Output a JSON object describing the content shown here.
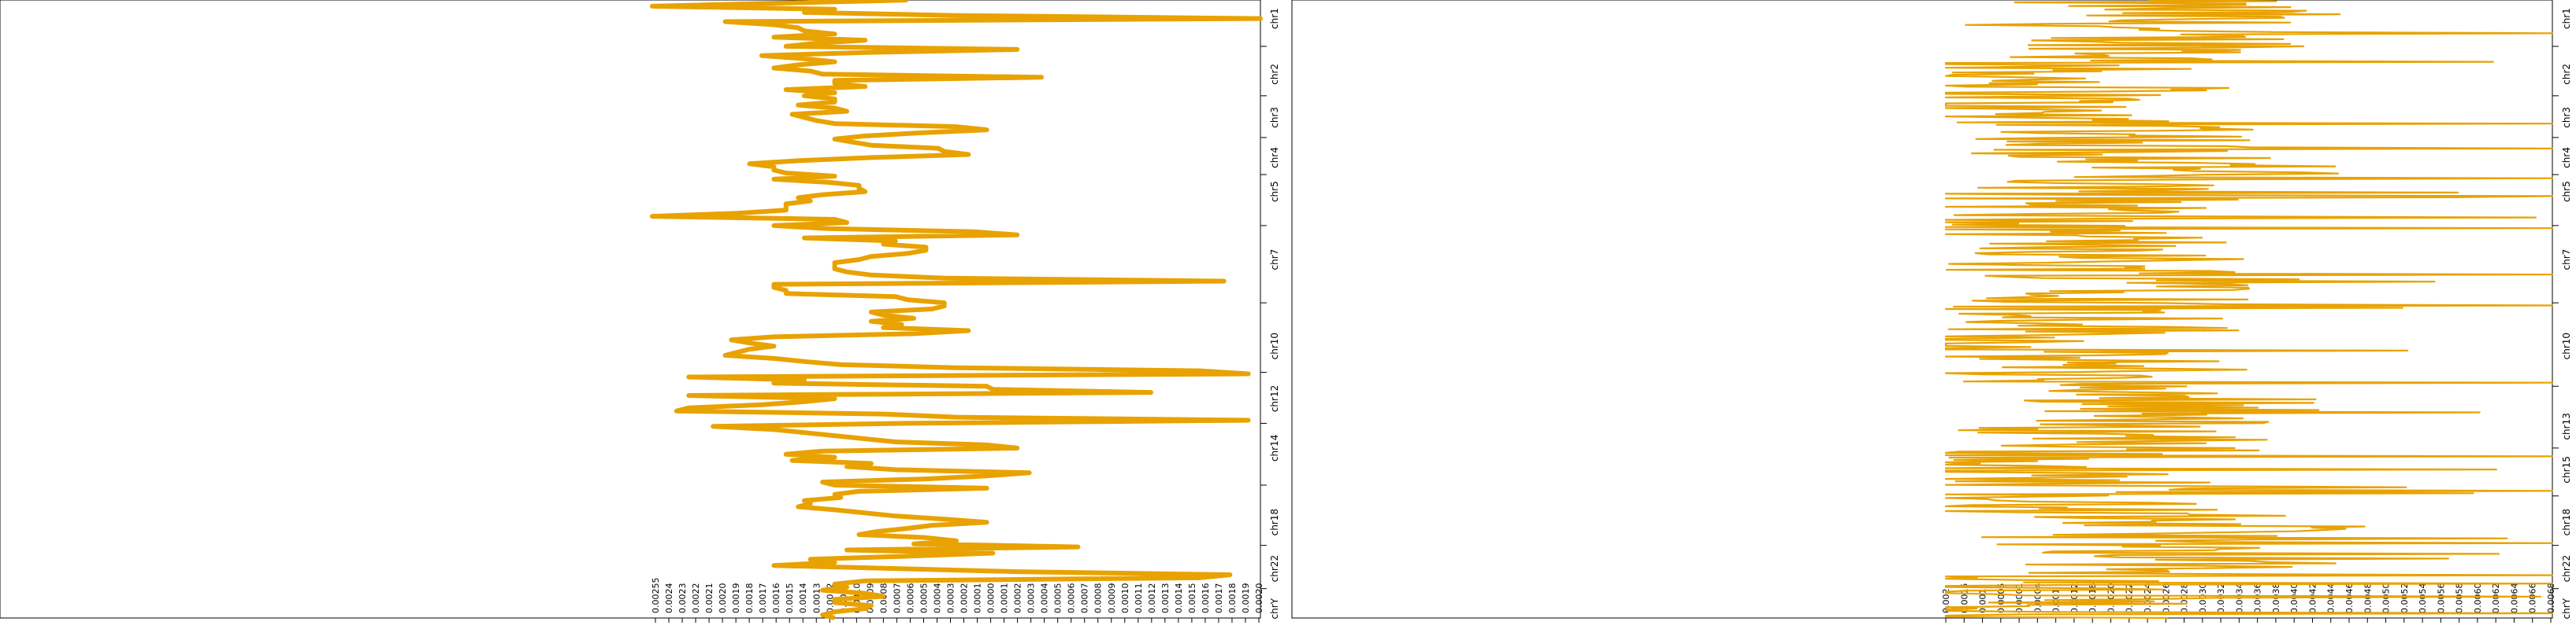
{
  "chart_data": [
    {
      "type": "line",
      "orientation": "vertical-profile",
      "color": "#E8A202",
      "chromosomes": [
        "chr1",
        "chr2",
        "chr3",
        "chr4",
        "chr5",
        "chr7",
        "chr10",
        "chr12",
        "chr14",
        "chr18",
        "chr22",
        "chrY"
      ],
      "chromosome_positions": [
        0.03,
        0.12,
        0.19,
        0.255,
        0.31,
        0.42,
        0.56,
        0.645,
        0.725,
        0.845,
        0.92,
        0.985
      ],
      "x_ticks": [
        "0.00255",
        "0.0024",
        "0.0023",
        "0.0022",
        "0.0021",
        "0.0020",
        "0.0019",
        "0.0018",
        "0.0017",
        "0.0016",
        "0.0015",
        "0.0014",
        "0.0013",
        "0.0012",
        "0.0011",
        "0.0010",
        "0.0009",
        "0.0008",
        "0.0007",
        "0.0006",
        "0.0005",
        "0.0004",
        "0.0003",
        "0.0002",
        "0.0001",
        "0.0000",
        "0.0001",
        "0.0002",
        "0.0003",
        "0.0004",
        "0.0005",
        "0.0006",
        "0.0007",
        "0.0008",
        "0.0009",
        "0.0010",
        "0.0011",
        "0.0012",
        "0.0013",
        "0.0014",
        "0.0015",
        "0.0016",
        "0.0017",
        "0.0018",
        "0.0019",
        "0.0020"
      ],
      "genome_fraction": [
        0.0,
        0.01,
        0.015,
        0.02,
        0.025,
        0.03,
        0.035,
        0.04,
        0.045,
        0.05,
        0.055,
        0.06,
        0.065,
        0.07,
        0.075,
        0.08,
        0.085,
        0.09,
        0.095,
        0.1,
        0.105,
        0.11,
        0.115,
        0.12,
        0.125,
        0.13,
        0.135,
        0.14,
        0.145,
        0.15,
        0.155,
        0.16,
        0.165,
        0.17,
        0.175,
        0.18,
        0.185,
        0.19,
        0.195,
        0.2,
        0.205,
        0.21,
        0.215,
        0.22,
        0.225,
        0.23,
        0.235,
        0.24,
        0.245,
        0.25,
        0.255,
        0.26,
        0.265,
        0.27,
        0.275,
        0.28,
        0.285,
        0.29,
        0.295,
        0.3,
        0.305,
        0.31,
        0.315,
        0.32,
        0.325,
        0.33,
        0.335,
        0.34,
        0.345,
        0.35,
        0.355,
        0.36,
        0.365,
        0.37,
        0.375,
        0.38,
        0.385,
        0.39,
        0.395,
        0.4,
        0.405,
        0.41,
        0.415,
        0.42,
        0.425,
        0.43,
        0.435,
        0.44,
        0.445,
        0.45,
        0.455,
        0.46,
        0.465,
        0.47,
        0.475,
        0.48,
        0.485,
        0.49,
        0.495,
        0.5,
        0.505,
        0.51,
        0.515,
        0.52,
        0.525,
        0.53,
        0.535,
        0.54,
        0.545,
        0.55,
        0.555,
        0.56,
        0.565,
        0.57,
        0.575,
        0.58,
        0.585,
        0.59,
        0.595,
        0.6,
        0.605,
        0.61,
        0.615,
        0.62,
        0.625,
        0.63,
        0.635,
        0.64,
        0.645,
        0.65,
        0.655,
        0.66,
        0.665,
        0.67,
        0.675,
        0.68,
        0.685,
        0.69,
        0.695,
        0.7,
        0.705,
        0.71,
        0.715,
        0.72,
        0.725,
        0.73,
        0.735,
        0.74,
        0.745,
        0.75,
        0.755,
        0.76,
        0.765,
        0.77,
        0.775,
        0.78,
        0.785,
        0.79,
        0.795,
        0.8,
        0.805,
        0.81,
        0.815,
        0.82,
        0.825,
        0.83,
        0.835,
        0.84,
        0.845,
        0.85,
        0.855,
        0.86,
        0.865,
        0.87,
        0.875,
        0.88,
        0.885,
        0.89,
        0.895,
        0.9,
        0.905,
        0.91,
        0.915,
        0.92,
        0.925,
        0.93,
        0.935,
        0.94,
        0.945,
        0.95,
        0.955,
        0.96,
        0.965,
        0.97,
        0.975,
        0.98,
        0.985,
        0.99,
        0.995,
        1.0
      ],
      "values": [
        0.42,
        0.0,
        0.3,
        0.25,
        0.5,
        1.0,
        0.12,
        0.2,
        0.24,
        0.25,
        0.3,
        0.2,
        0.35,
        0.27,
        0.22,
        0.6,
        0.35,
        0.18,
        0.25,
        0.3,
        0.24,
        0.2,
        0.26,
        0.28,
        0.64,
        0.3,
        0.3,
        0.35,
        0.22,
        0.3,
        0.25,
        0.3,
        0.3,
        0.24,
        0.3,
        0.32,
        0.23,
        0.25,
        0.27,
        0.3,
        0.5,
        0.55,
        0.44,
        0.35,
        0.3,
        0.33,
        0.36,
        0.47,
        0.48,
        0.52,
        0.36,
        0.24,
        0.16,
        0.2,
        0.2,
        0.22,
        0.3,
        0.2,
        0.29,
        0.34,
        0.34,
        0.35,
        0.28,
        0.24,
        0.26,
        0.22,
        0.22,
        0.22,
        0.14,
        0.0,
        0.3,
        0.32,
        0.2,
        0.29,
        0.53,
        0.6,
        0.25,
        0.4,
        0.38,
        0.45,
        0.45,
        0.42,
        0.36,
        0.34,
        0.3,
        0.3,
        0.3,
        0.32,
        0.36,
        0.48,
        0.94,
        0.2,
        0.2,
        0.22,
        0.22,
        0.4,
        0.42,
        0.48,
        0.48,
        0.46,
        0.36,
        0.38,
        0.43,
        0.36,
        0.41,
        0.38,
        0.52,
        0.43,
        0.2,
        0.13,
        0.16,
        0.2,
        0.16,
        0.14,
        0.12,
        0.2,
        0.25,
        0.31,
        0.5,
        0.9,
        0.98,
        0.06,
        0.25,
        0.2,
        0.55,
        0.56,
        0.82,
        0.06,
        0.3,
        0.25,
        0.18,
        0.06,
        0.04,
        0.38,
        0.5,
        0.98,
        0.42,
        0.1,
        0.2,
        0.25,
        0.3,
        0.35,
        0.4,
        0.55,
        0.6,
        0.28,
        0.22,
        0.3,
        0.23,
        0.36,
        0.32,
        0.4,
        0.62,
        0.55,
        0.45,
        0.28,
        0.3,
        0.55,
        0.34,
        0.3,
        0.31,
        0.25,
        0.26,
        0.24,
        0.3,
        0.35,
        0.4,
        0.48,
        0.55,
        0.46,
        0.42,
        0.37,
        0.34,
        0.45,
        0.5,
        0.43,
        0.7,
        0.32,
        0.56,
        0.42,
        0.26,
        0.3,
        0.2,
        0.4,
        0.6,
        0.95,
        0.9,
        0.35,
        0.3,
        0.32,
        0.28,
        0.35,
        0.38,
        0.3,
        0.3,
        0.36,
        0.35,
        0.3,
        0.28,
        0.3
      ]
    },
    {
      "type": "line",
      "orientation": "vertical-profile",
      "color": "#E8A202",
      "chromosomes": [
        "chr1",
        "chr2",
        "chr3",
        "chr4",
        "chr5",
        "chr7",
        "chr10",
        "chr13",
        "chr15",
        "chr18",
        "chr22",
        "chrY"
      ],
      "chromosome_positions": [
        0.03,
        0.12,
        0.19,
        0.255,
        0.31,
        0.42,
        0.56,
        0.69,
        0.76,
        0.845,
        0.92,
        0.985
      ],
      "x_ticks": [
        "0.002",
        "0.0015",
        "0.001",
        "0.0005",
        "0.0001",
        "0.0004",
        "0.001",
        "0.0012",
        "0.0018",
        "0.0020",
        "0.0022",
        "0.0024",
        "0.0026",
        "0.0028",
        "0.0030",
        "0.0032",
        "0.0034",
        "0.0036",
        "0.0038",
        "0.0040",
        "0.0042",
        "0.0044",
        "0.0046",
        "0.0048",
        "0.0050",
        "0.0052",
        "0.0054",
        "0.0056",
        "0.0058",
        "0.0060",
        "0.0062",
        "0.0064",
        "0.0066",
        "0.0068"
      ]
    }
  ]
}
